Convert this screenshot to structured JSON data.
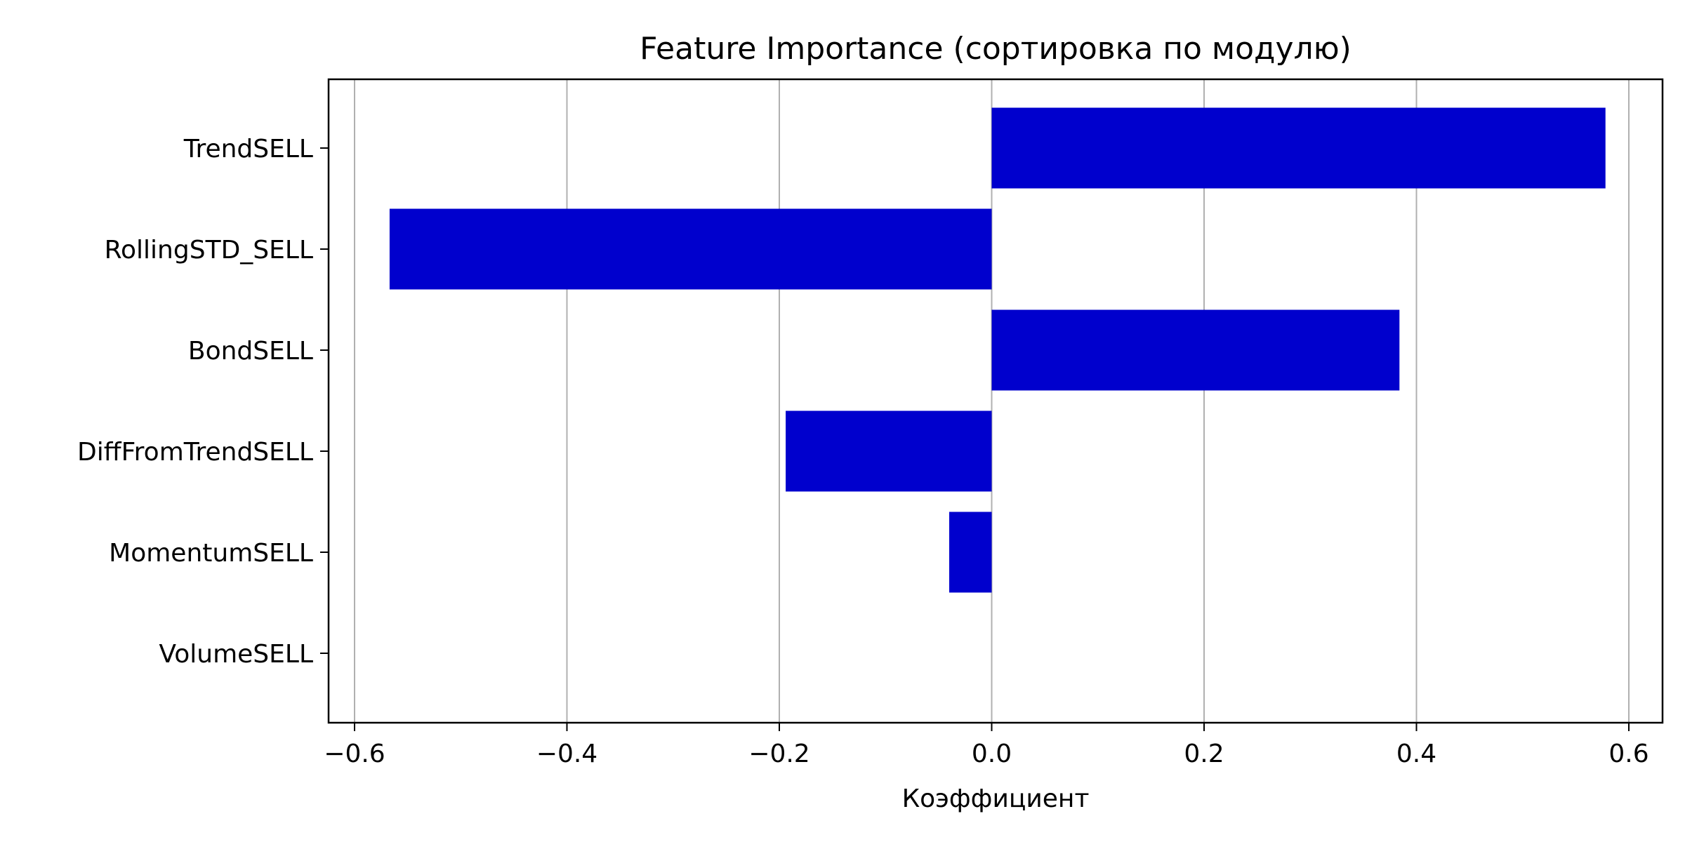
{
  "chart_data": {
    "type": "bar",
    "orientation": "horizontal",
    "title": "Feature Importance (сортировка по модулю)",
    "xlabel": "Коэффициент",
    "ylabel": "",
    "categories": [
      "TrendSELL",
      "RollingSTD_SELL",
      "BondSELL",
      "DiffFromTrendSELL",
      "MomentumSELL",
      "VolumeSELL"
    ],
    "values": [
      0.578,
      -0.567,
      0.384,
      -0.194,
      -0.04,
      0.0
    ],
    "xlim": [
      -0.6,
      0.6
    ],
    "xticks": [
      -0.6,
      -0.4,
      -0.2,
      0.0,
      0.2,
      0.4,
      0.6
    ],
    "xtick_labels": [
      "−0.6",
      "−0.4",
      "−0.2",
      "0.0",
      "0.2",
      "0.4",
      "0.6"
    ],
    "bar_color": "#0000cd",
    "grid": "vertical"
  }
}
